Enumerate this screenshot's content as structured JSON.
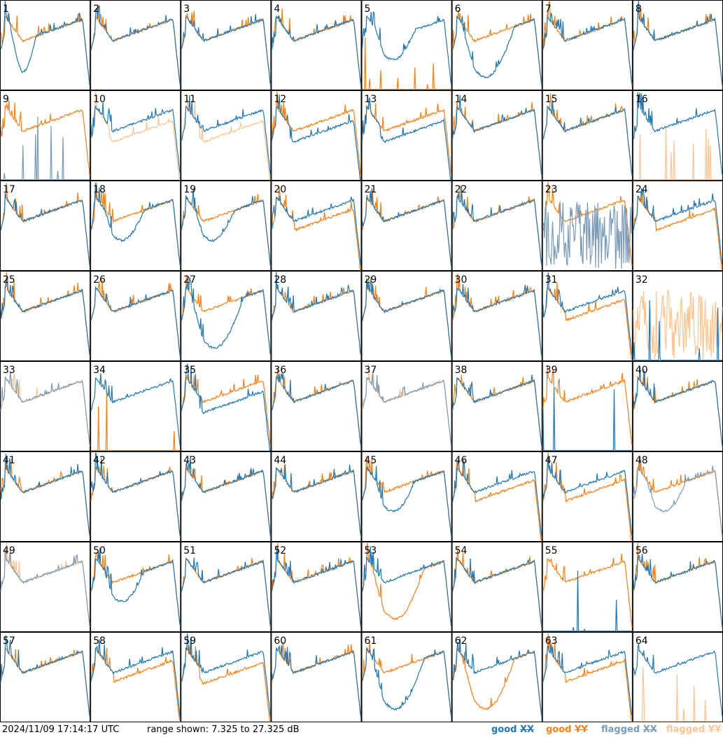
{
  "footer": {
    "timestamp": "2024/11/09 17:14:17 UTC",
    "range_text": "range shown: 7.325 to 27.325 dB"
  },
  "legend": [
    {
      "key": "good",
      "pol": "XX",
      "color": "#1f77b4"
    },
    {
      "key": "good",
      "pol": "YY",
      "color": "#ff7f0e"
    },
    {
      "key": "flagged",
      "pol": "XX",
      "color": "#7a9bb8"
    },
    {
      "key": "flagged",
      "pol": "YY",
      "color": "#ffc38f"
    }
  ],
  "chart_data": {
    "type": "line",
    "grid": {
      "rows": 8,
      "cols": 8
    },
    "ylim_db": [
      7.325,
      27.325
    ],
    "panels": [
      {
        "label": "1",
        "xx": "good",
        "yy": "good",
        "sxx": "dipY"
      },
      {
        "label": "2",
        "xx": "good",
        "yy": "good",
        "sxx": "normal"
      },
      {
        "label": "3",
        "xx": "good",
        "yy": "good",
        "sxx": "normal"
      },
      {
        "label": "4",
        "xx": "good",
        "yy": "good",
        "sxx": "normal"
      },
      {
        "label": "5",
        "xx": "good",
        "yy": "good",
        "sxx": "dip",
        "syy": "dead"
      },
      {
        "label": "6",
        "xx": "good",
        "yy": "good",
        "sxx": "deepdip"
      },
      {
        "label": "7",
        "xx": "good",
        "yy": "good",
        "sxx": "normal"
      },
      {
        "label": "8",
        "xx": "good",
        "yy": "good",
        "sxx": "normal"
      },
      {
        "label": "9",
        "xx": "flagged",
        "yy": "good",
        "sxx": "dead"
      },
      {
        "label": "10",
        "xx": "good",
        "yy": "flagged",
        "syy": "sag"
      },
      {
        "label": "11",
        "xx": "good",
        "yy": "flagged",
        "syy": "sag"
      },
      {
        "label": "12",
        "xx": "good",
        "yy": "good",
        "sxx": "sag"
      },
      {
        "label": "13",
        "xx": "good",
        "yy": "good",
        "sxx": "sag"
      },
      {
        "label": "14",
        "xx": "good",
        "yy": "good",
        "sxx": "normal"
      },
      {
        "label": "15",
        "xx": "good",
        "yy": "good",
        "sxx": "normal"
      },
      {
        "label": "16",
        "xx": "good",
        "yy": "flagged",
        "syy": "dead"
      },
      {
        "label": "17",
        "xx": "good",
        "yy": "good",
        "sxx": "normal"
      },
      {
        "label": "18",
        "xx": "good",
        "yy": "good",
        "sxx": "dip"
      },
      {
        "label": "19",
        "xx": "good",
        "yy": "good",
        "sxx": "dip"
      },
      {
        "label": "20",
        "xx": "good",
        "yy": "good",
        "syy": "low"
      },
      {
        "label": "21",
        "xx": "good",
        "yy": "good",
        "sxx": "normal"
      },
      {
        "label": "22",
        "xx": "good",
        "yy": "good",
        "sxx": "normal"
      },
      {
        "label": "23",
        "xx": "flagged",
        "yy": "good",
        "sxx": "noise"
      },
      {
        "label": "24",
        "xx": "good",
        "yy": "good",
        "syy": "low"
      },
      {
        "label": "25",
        "xx": "good",
        "yy": "good",
        "sxx": "normal"
      },
      {
        "label": "26",
        "xx": "good",
        "yy": "good",
        "sxx": "normal"
      },
      {
        "label": "27",
        "xx": "good",
        "yy": "good",
        "sxx": "deepdip"
      },
      {
        "label": "28",
        "xx": "good",
        "yy": "good",
        "sxx": "normal"
      },
      {
        "label": "29",
        "xx": "good",
        "yy": "good",
        "sxx": "normal"
      },
      {
        "label": "30",
        "xx": "good",
        "yy": "good",
        "sxx": "normal"
      },
      {
        "label": "31",
        "xx": "good",
        "yy": "good",
        "syy": "low"
      },
      {
        "label": "32",
        "xx": "good",
        "yy": "flagged",
        "syy": "noise",
        "sxx": "dead"
      },
      {
        "label": "33",
        "xx": "flagged",
        "yy": "flagged",
        "sxx": "normal"
      },
      {
        "label": "34",
        "xx": "good",
        "yy": "good",
        "syy": "dead"
      },
      {
        "label": "35",
        "xx": "good",
        "yy": "good",
        "sxx": "sag"
      },
      {
        "label": "36",
        "xx": "good",
        "yy": "good",
        "sxx": "normal"
      },
      {
        "label": "37",
        "xx": "flagged",
        "yy": "flagged",
        "sxx": "normal"
      },
      {
        "label": "38",
        "xx": "good",
        "yy": "good",
        "sxx": "normal"
      },
      {
        "label": "39",
        "xx": "good",
        "yy": "good",
        "sxx": "dead"
      },
      {
        "label": "40",
        "xx": "good",
        "yy": "good",
        "sxx": "normal"
      },
      {
        "label": "41",
        "xx": "good",
        "yy": "good",
        "sxx": "normal"
      },
      {
        "label": "42",
        "xx": "good",
        "yy": "good",
        "sxx": "normal"
      },
      {
        "label": "43",
        "xx": "good",
        "yy": "good",
        "sxx": "normal"
      },
      {
        "label": "44",
        "xx": "good",
        "yy": "good",
        "sxx": "normal"
      },
      {
        "label": "45",
        "xx": "good",
        "yy": "good",
        "sxx": "dip"
      },
      {
        "label": "46",
        "xx": "good",
        "yy": "good",
        "syy": "low"
      },
      {
        "label": "47",
        "xx": "good",
        "yy": "good",
        "syy": "low"
      },
      {
        "label": "48",
        "xx": "flagged",
        "yy": "good",
        "sxx": "dip"
      },
      {
        "label": "49",
        "xx": "flagged",
        "yy": "flagged",
        "sxx": "normal"
      },
      {
        "label": "50",
        "xx": "good",
        "yy": "good",
        "sxx": "dip"
      },
      {
        "label": "51",
        "xx": "good",
        "yy": "good",
        "sxx": "normal"
      },
      {
        "label": "52",
        "xx": "good",
        "yy": "good",
        "sxx": "normal"
      },
      {
        "label": "53",
        "xx": "good",
        "yy": "good",
        "syy": "deepdip"
      },
      {
        "label": "54",
        "xx": "good",
        "yy": "good",
        "sxx": "normal"
      },
      {
        "label": "55",
        "xx": "good",
        "yy": "good",
        "sxx": "dead"
      },
      {
        "label": "56",
        "xx": "good",
        "yy": "good",
        "sxx": "normal"
      },
      {
        "label": "57",
        "xx": "good",
        "yy": "good",
        "sxx": "normal"
      },
      {
        "label": "58",
        "xx": "good",
        "yy": "good",
        "syy": "low"
      },
      {
        "label": "59",
        "xx": "good",
        "yy": "good",
        "syy": "sag"
      },
      {
        "label": "60",
        "xx": "good",
        "yy": "good",
        "sxx": "normal"
      },
      {
        "label": "61",
        "xx": "good",
        "yy": "good",
        "sxx": "deepdip"
      },
      {
        "label": "62",
        "xx": "good",
        "yy": "good",
        "syy": "deepdip"
      },
      {
        "label": "63",
        "xx": "good",
        "yy": "good",
        "syy": "low"
      },
      {
        "label": "64",
        "xx": "good",
        "yy": "flagged",
        "syy": "dead"
      }
    ]
  }
}
